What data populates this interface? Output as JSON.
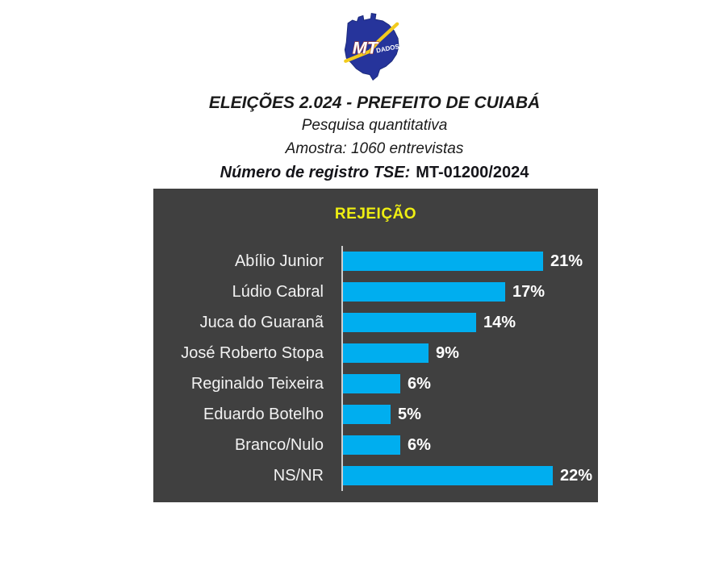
{
  "logo": {
    "map_label": "MT",
    "map_sublabel": "DADOS",
    "map_color": "#26349B",
    "map_label_outline": "#A33A2E",
    "trend_line_color": "#F2CB1D"
  },
  "header": {
    "title": "ELEIÇÕES 2.024  -  PREFEITO DE CUIABÁ",
    "subtitle": "Pesquisa quantitativa",
    "sample": "Amostra: 1060 entrevistas",
    "registration_label": "Número de registro TSE:",
    "registration_value": "MT-01200/2024"
  },
  "chart_data": {
    "type": "bar",
    "orientation": "horizontal",
    "title": "REJEIÇÃO",
    "categories": [
      "Abílio Junior",
      "Lúdio Cabral",
      "Juca do Guaranã",
      "José Roberto Stopa",
      "Reginaldo Teixeira",
      "Eduardo Botelho",
      "Branco/Nulo",
      "NS/NR"
    ],
    "values": [
      21,
      17,
      14,
      9,
      6,
      5,
      6,
      22
    ],
    "value_suffix": "%",
    "xlim": [
      0,
      26.6
    ],
    "grid": false,
    "legend": false,
    "background_color": "#404040",
    "bar_color": "#00AEEF",
    "title_color": "#EFEF12",
    "label_color": "#F2F2F2",
    "value_color": "#FFFFFF",
    "axis_line_color": "#CFCFCF"
  }
}
